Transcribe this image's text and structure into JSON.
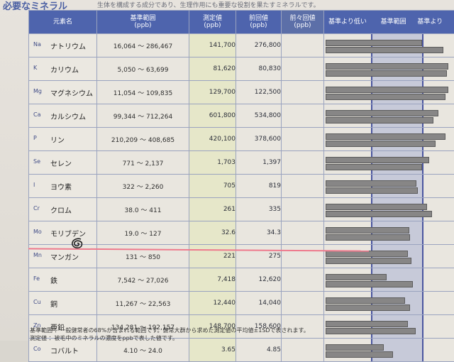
{
  "title": "必要なミネラル",
  "subtitle": "生体を構成する成分であり、生理作用にも重要な役割を果たすミネラルです。",
  "headers": {
    "element": "元素名",
    "range": "基準範囲",
    "range_unit": "(ppb)",
    "measured": "測定値",
    "measured_unit": "(ppb)",
    "previous": "前回値",
    "previous_unit": "(ppb)",
    "prev_prev": "前々回値",
    "prev_prev_unit": "(ppb)",
    "below": "基準より低い",
    "normal": "基準範囲",
    "above": "基準より"
  },
  "rows": [
    {
      "sym": "Na",
      "name": "ナトリウム",
      "range": "16,064 〜 286,467",
      "measured": "141,700",
      "previous": "276,800",
      "bar_measured": 0.75,
      "bar_previous": 0.92
    },
    {
      "sym": "K",
      "name": "カリウム",
      "range": "5,050 〜 63,699",
      "measured": "81,620",
      "previous": "80,830",
      "bar_measured": 0.96,
      "bar_previous": 0.95
    },
    {
      "sym": "Mg",
      "name": "マグネシウム",
      "range": "11,054 〜 109,835",
      "measured": "129,700",
      "previous": "122,500",
      "bar_measured": 0.96,
      "bar_previous": 0.94
    },
    {
      "sym": "Ca",
      "name": "カルシウム",
      "range": "99,344 〜 712,264",
      "measured": "601,800",
      "previous": "534,800",
      "bar_measured": 0.88,
      "bar_previous": 0.84
    },
    {
      "sym": "P",
      "name": "リン",
      "range": "210,209 〜 408,685",
      "measured": "420,100",
      "previous": "378,600",
      "bar_measured": 0.94,
      "bar_previous": 0.86
    },
    {
      "sym": "Se",
      "name": "セレン",
      "range": "771 〜 2,137",
      "measured": "1,703",
      "previous": "1,397",
      "bar_measured": 0.81,
      "bar_previous": 0.75
    },
    {
      "sym": "I",
      "name": "ヨウ素",
      "range": "322 〜 2,260",
      "measured": "705",
      "previous": "819",
      "bar_measured": 0.71,
      "bar_previous": 0.72
    },
    {
      "sym": "Cr",
      "name": "クロム",
      "range": "38.0 〜 411",
      "measured": "261",
      "previous": "335",
      "bar_measured": 0.79,
      "bar_previous": 0.83
    },
    {
      "sym": "Mo",
      "name": "モリブデン",
      "range": "19.0 〜 127",
      "measured": "32.6",
      "previous": "34.3",
      "bar_measured": 0.65,
      "bar_previous": 0.66
    },
    {
      "sym": "Mn",
      "name": "マンガン",
      "range": "131 〜 850",
      "measured": "221",
      "previous": "275",
      "bar_measured": 0.64,
      "bar_previous": 0.67
    },
    {
      "sym": "Fe",
      "name": "鉄",
      "range": "7,542 〜 27,026",
      "measured": "7,418",
      "previous": "12,620",
      "bar_measured": 0.47,
      "bar_previous": 0.68
    },
    {
      "sym": "Cu",
      "name": "銅",
      "range": "11,267 〜 22,563",
      "measured": "12,440",
      "previous": "14,040",
      "bar_measured": 0.62,
      "bar_previous": 0.66
    },
    {
      "sym": "Zn",
      "name": "亜鉛",
      "range": "134,281 〜 192,157",
      "measured": "148,700",
      "previous": "158,600",
      "bar_measured": 0.64,
      "bar_previous": 0.7
    },
    {
      "sym": "Co",
      "name": "コバルト",
      "range": "4.10 〜 24.0",
      "measured": "3.65",
      "previous": "4.85",
      "bar_measured": 0.45,
      "bar_previous": 0.52
    }
  ],
  "footer": [
    "基準範囲 ：一般健常者の68%が含まれる範囲です。健常大群から求めた測定値の平均値±1SDで表されます。",
    "測定値 ：被毛中のミネラルの濃度をppbで表した値です。"
  ],
  "accent": "#4e64ad",
  "mark_color": "#ee7a8d"
}
